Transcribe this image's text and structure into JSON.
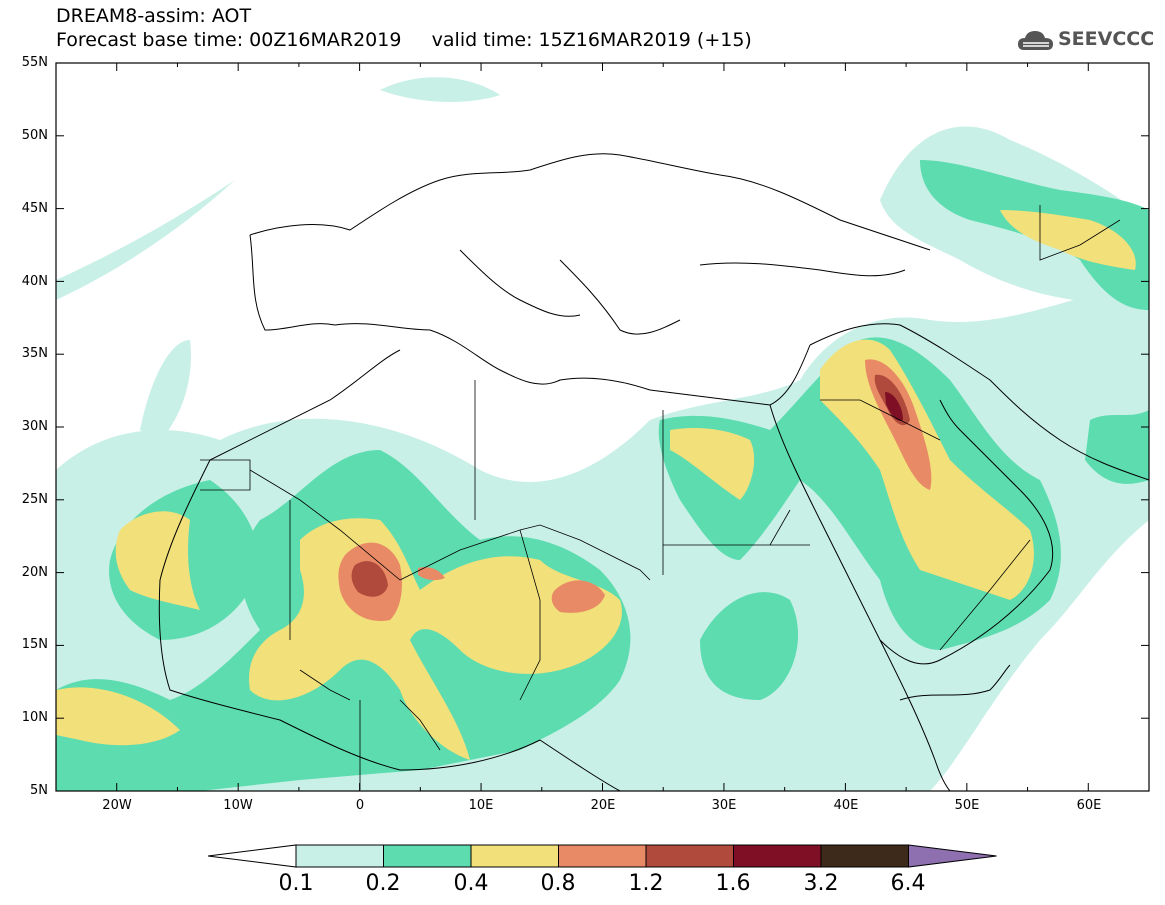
{
  "header": {
    "line1": "DREAM8-assim: AOT",
    "line2": "Forecast base time: 00Z16MAR2019     valid time: 15Z16MAR2019 (+15)"
  },
  "logo": {
    "text": "SEEVCCC",
    "icon": "cloud-logo-icon"
  },
  "map": {
    "lon_range": [
      -25,
      65
    ],
    "lat_range": [
      5,
      55
    ],
    "lat_ticks": [
      "55N",
      "50N",
      "45N",
      "40N",
      "35N",
      "30N",
      "25N",
      "20N",
      "15N",
      "10N",
      "5N"
    ],
    "lon_ticks": [
      "20W",
      "10W",
      "0",
      "10E",
      "20E",
      "30E",
      "40E",
      "50E",
      "60E"
    ],
    "variable": "AOT",
    "colors": {
      "c1": "#c8f0e6",
      "c2": "#5ddcb0",
      "c3": "#f2e07a",
      "c4": "#e98a66",
      "c5": "#b04a3c",
      "c6": "#7e0f24",
      "c7": "#3e2a1a",
      "c8": "#8e6fb0"
    }
  },
  "colorbar": {
    "labels": [
      "0.1",
      "0.2",
      "0.4",
      "0.8",
      "1.2",
      "1.6",
      "3.2",
      "6.4"
    ],
    "colors": [
      "#ffffff",
      "#c8f0e6",
      "#5ddcb0",
      "#f2e07a",
      "#e98a66",
      "#b04a3c",
      "#7e0f24",
      "#3e2a1a",
      "#8e6fb0"
    ]
  }
}
